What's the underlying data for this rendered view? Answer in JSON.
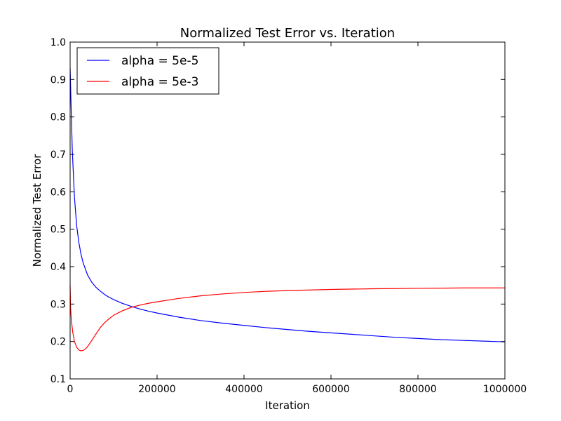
{
  "chart_data": {
    "type": "line",
    "title": "Normalized Test Error vs. Iteration",
    "xlabel": "Iteration",
    "ylabel": "Normalized Test Error",
    "xlim": [
      0,
      1000000
    ],
    "ylim": [
      0.1,
      1.0
    ],
    "xticks": [
      "0",
      "200000",
      "400000",
      "600000",
      "800000",
      "1000000"
    ],
    "yticks": [
      "0.1",
      "0.2",
      "0.3",
      "0.4",
      "0.5",
      "0.6",
      "0.7",
      "0.8",
      "0.9",
      "1.0"
    ],
    "grid": false,
    "legend_position": "top-left",
    "series": [
      {
        "name": "alpha = 5e-5",
        "color": "#0000ff",
        "x": [
          0,
          2000,
          5000,
          10000,
          15000,
          20000,
          25000,
          30000,
          40000,
          50000,
          60000,
          70000,
          80000,
          90000,
          100000,
          120000,
          140000,
          160000,
          180000,
          200000,
          250000,
          300000,
          350000,
          400000,
          450000,
          500000,
          550000,
          600000,
          650000,
          700000,
          750000,
          800000,
          850000,
          900000,
          950000,
          1000000
        ],
        "y": [
          0.93,
          0.84,
          0.71,
          0.585,
          0.51,
          0.465,
          0.433,
          0.41,
          0.378,
          0.358,
          0.344,
          0.334,
          0.325,
          0.318,
          0.312,
          0.302,
          0.294,
          0.287,
          0.281,
          0.276,
          0.265,
          0.256,
          0.249,
          0.243,
          0.237,
          0.232,
          0.227,
          0.223,
          0.219,
          0.215,
          0.211,
          0.208,
          0.205,
          0.203,
          0.201,
          0.199
        ]
      },
      {
        "name": "alpha = 5e-3",
        "color": "#ff0000",
        "x": [
          0,
          1000,
          3000,
          6000,
          10000,
          15000,
          20000,
          25000,
          30000,
          35000,
          40000,
          50000,
          60000,
          70000,
          80000,
          90000,
          100000,
          120000,
          140000,
          160000,
          180000,
          200000,
          250000,
          300000,
          350000,
          400000,
          450000,
          500000,
          600000,
          700000,
          800000,
          900000,
          1000000
        ],
        "y": [
          0.35,
          0.29,
          0.255,
          0.225,
          0.2,
          0.185,
          0.177,
          0.175,
          0.176,
          0.18,
          0.186,
          0.203,
          0.221,
          0.238,
          0.251,
          0.261,
          0.27,
          0.282,
          0.291,
          0.297,
          0.302,
          0.306,
          0.315,
          0.322,
          0.327,
          0.331,
          0.334,
          0.336,
          0.339,
          0.341,
          0.342,
          0.343,
          0.343
        ]
      }
    ]
  }
}
